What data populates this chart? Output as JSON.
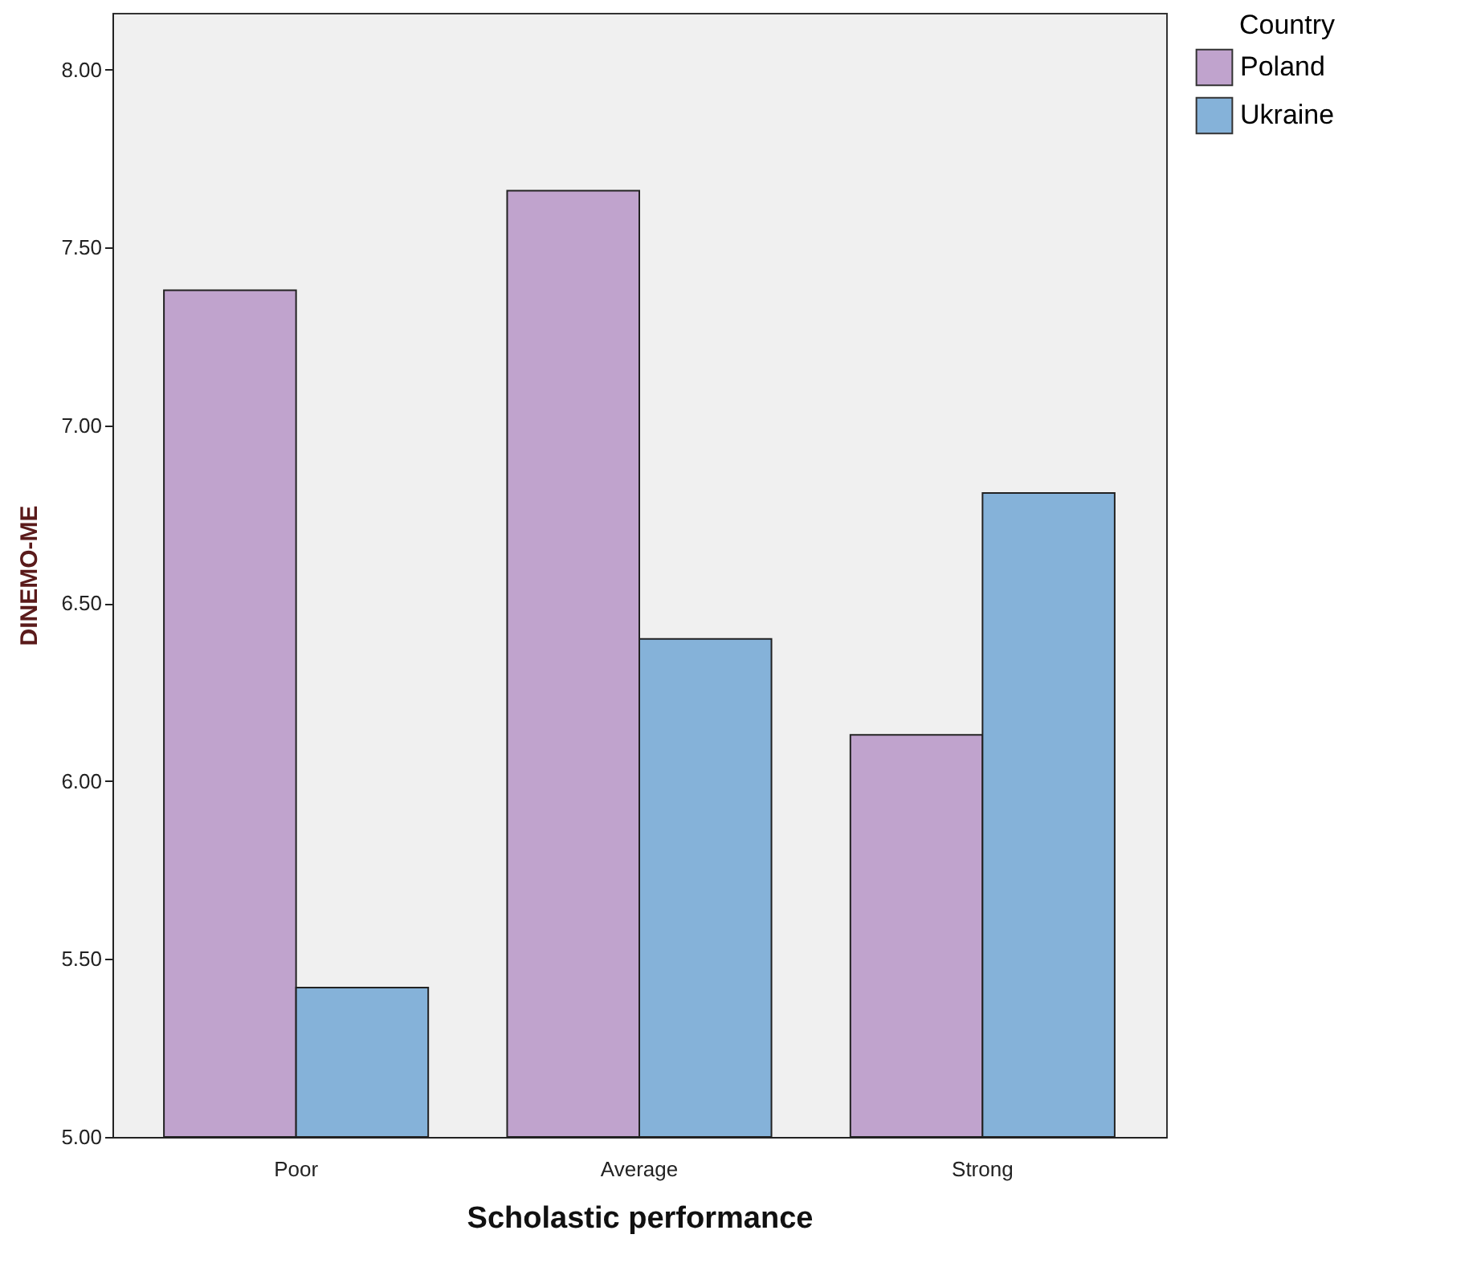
{
  "chart_data": {
    "type": "bar",
    "xlabel": "Scholastic performance",
    "ylabel": "DINEMO-ME",
    "legend_title": "Country",
    "categories": [
      "Poor",
      "Average",
      "Strong"
    ],
    "series": [
      {
        "name": "Poland",
        "color": "#c0a3cd",
        "values": [
          7.38,
          7.66,
          6.13
        ]
      },
      {
        "name": "Ukraine",
        "color": "#85b2d9",
        "values": [
          5.42,
          6.4,
          6.81
        ]
      }
    ],
    "ylim": [
      5,
      8.16
    ],
    "yticks": [
      {
        "value": 5,
        "label": "5.00"
      },
      {
        "value": 5.5,
        "label": "5.50"
      },
      {
        "value": 6,
        "label": "6.00"
      },
      {
        "value": 6.5,
        "label": "6.50"
      },
      {
        "value": 7,
        "label": "7.00"
      },
      {
        "value": 7.5,
        "label": "7.50"
      },
      {
        "value": 8,
        "label": "8.00"
      }
    ],
    "grid": false,
    "legend": "top right"
  }
}
